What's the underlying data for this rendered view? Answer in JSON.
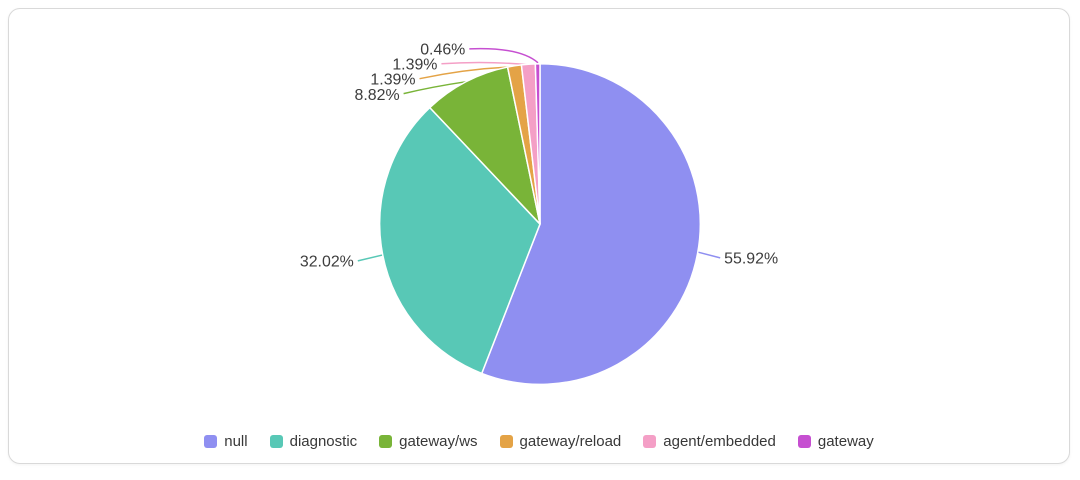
{
  "theme": {
    "page_background": "#ffffff",
    "card_background": "#ffffff",
    "card_border": "#d9d9d9",
    "label_text": "#3d3d3d",
    "legend_text": "#383838",
    "slice_border": "#ffffff"
  },
  "chart_data": {
    "type": "pie",
    "title": "",
    "start_angle": "12-o-clock",
    "direction": "clockwise",
    "label_format": "percent",
    "legend_position": "bottom",
    "total": 100,
    "slices": [
      {
        "name": "null",
        "value": 55.92,
        "label": "55.92%",
        "color": "#8f8ff1"
      },
      {
        "name": "diagnostic",
        "value": 32.02,
        "label": "32.02%",
        "color": "#58c8b6"
      },
      {
        "name": "gateway/ws",
        "value": 8.82,
        "label": "8.82%",
        "color": "#79b438"
      },
      {
        "name": "gateway/reload",
        "value": 1.39,
        "label": "1.39%",
        "color": "#e4a346"
      },
      {
        "name": "agent/embedded",
        "value": 1.39,
        "label": "1.39%",
        "color": "#f49fc6"
      },
      {
        "name": "gateway",
        "value": 0.46,
        "label": "0.46%",
        "color": "#c64fd1"
      }
    ]
  }
}
